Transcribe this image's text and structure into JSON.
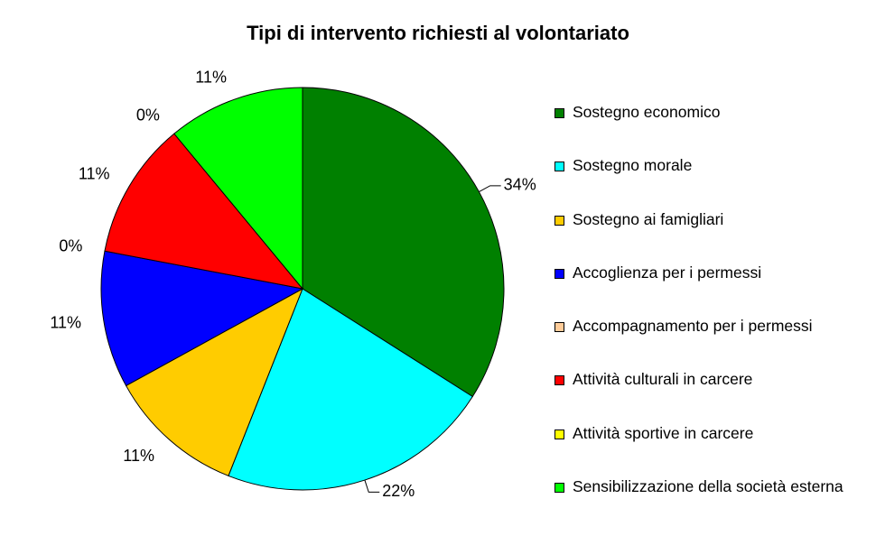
{
  "chart_data": {
    "type": "pie",
    "title": "Tipi di intervento richiesti al volontariato",
    "categories": [
      "Sostegno economico",
      "Sostegno morale",
      "Sostegno ai famigliari",
      "Accoglienza per i permessi",
      "Accompagnamento per i permessi",
      "Attività culturali in carcere",
      "Attività sportive in carcere",
      "Sensibilizzazione della società esterna"
    ],
    "values": [
      34,
      22,
      11,
      11,
      0,
      11,
      0,
      11
    ],
    "data_labels": [
      "34%",
      "22%",
      "11%",
      "11%",
      "0%",
      "11%",
      "0%",
      "11%"
    ],
    "colors": [
      "#008000",
      "#00FFFF",
      "#FFCC00",
      "#0000FF",
      "#FFCC99",
      "#FF0000",
      "#FFFF00",
      "#00FF00"
    ],
    "legend_position": "right"
  }
}
